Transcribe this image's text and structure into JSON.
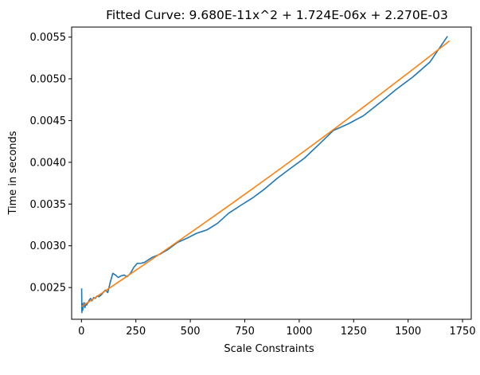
{
  "chart_data": {
    "type": "line",
    "title": "Fitted Curve: 9.680E-11x^2 + 1.724E-06x + 2.270E-03",
    "xlabel": "Scale Constraints",
    "ylabel": "Time in seconds",
    "xlim": [
      -45,
      1790
    ],
    "ylim": [
      0.00212,
      0.00562
    ],
    "xticks": [
      0,
      250,
      500,
      750,
      1000,
      1250,
      1500,
      1750
    ],
    "xtick_labels": [
      "0",
      "250",
      "500",
      "750",
      "1000",
      "1250",
      "1500",
      "1750"
    ],
    "yticks": [
      0.0025,
      0.003,
      0.0035,
      0.004,
      0.0045,
      0.005,
      0.0055
    ],
    "ytick_labels": [
      "0.0025",
      "0.0030",
      "0.0035",
      "0.0040",
      "0.0045",
      "0.0050",
      "0.0055"
    ],
    "grid": false,
    "series": [
      {
        "color": "#1f77b4",
        "x": [
          1,
          2,
          4,
          6,
          8,
          10,
          12,
          16,
          20,
          24,
          30,
          36,
          42,
          48,
          56,
          64,
          72,
          80,
          90,
          100,
          110,
          121,
          132,
          144,
          156,
          169,
          182,
          196,
          210,
          225,
          240,
          256,
          272,
          289,
          306,
          324,
          342,
          361,
          400,
          441,
          484,
          529,
          576,
          625,
          676,
          729,
          784,
          841,
          900,
          961,
          1024,
          1089,
          1156,
          1225,
          1296,
          1369,
          1444,
          1521,
          1600,
          1681
        ],
        "y": [
          0.00249,
          0.0022,
          0.00231,
          0.00223,
          0.00229,
          0.00228,
          0.00232,
          0.00226,
          0.00231,
          0.00229,
          0.00232,
          0.00235,
          0.00237,
          0.00234,
          0.00238,
          0.00237,
          0.0024,
          0.00239,
          0.00241,
          0.00244,
          0.00247,
          0.00244,
          0.00256,
          0.00267,
          0.00265,
          0.00262,
          0.00264,
          0.00265,
          0.00263,
          0.00267,
          0.00274,
          0.00279,
          0.00279,
          0.0028,
          0.00283,
          0.00286,
          0.00288,
          0.0029,
          0.00296,
          0.00304,
          0.00309,
          0.00315,
          0.00319,
          0.00327,
          0.00339,
          0.00348,
          0.00357,
          0.00368,
          0.00381,
          0.00393,
          0.00405,
          0.00421,
          0.00438,
          0.00446,
          0.00456,
          0.00471,
          0.00487,
          0.00502,
          0.0052,
          0.00551
        ]
      },
      {
        "color": "#ff7f0e",
        "x": [
          1,
          100,
          200,
          300,
          400,
          500,
          600,
          700,
          800,
          900,
          1000,
          1100,
          1200,
          1300,
          1400,
          1500,
          1600,
          1690
        ],
        "y": [
          0.0022717,
          0.0024434,
          0.0026187,
          0.0027959,
          0.002975,
          0.003156,
          0.0033389,
          0.0035235,
          0.0037101,
          0.0038987,
          0.0040892,
          0.0042814,
          0.0044756,
          0.0046717,
          0.00487,
          0.0050692,
          0.0052706,
          0.005454
        ]
      }
    ]
  }
}
